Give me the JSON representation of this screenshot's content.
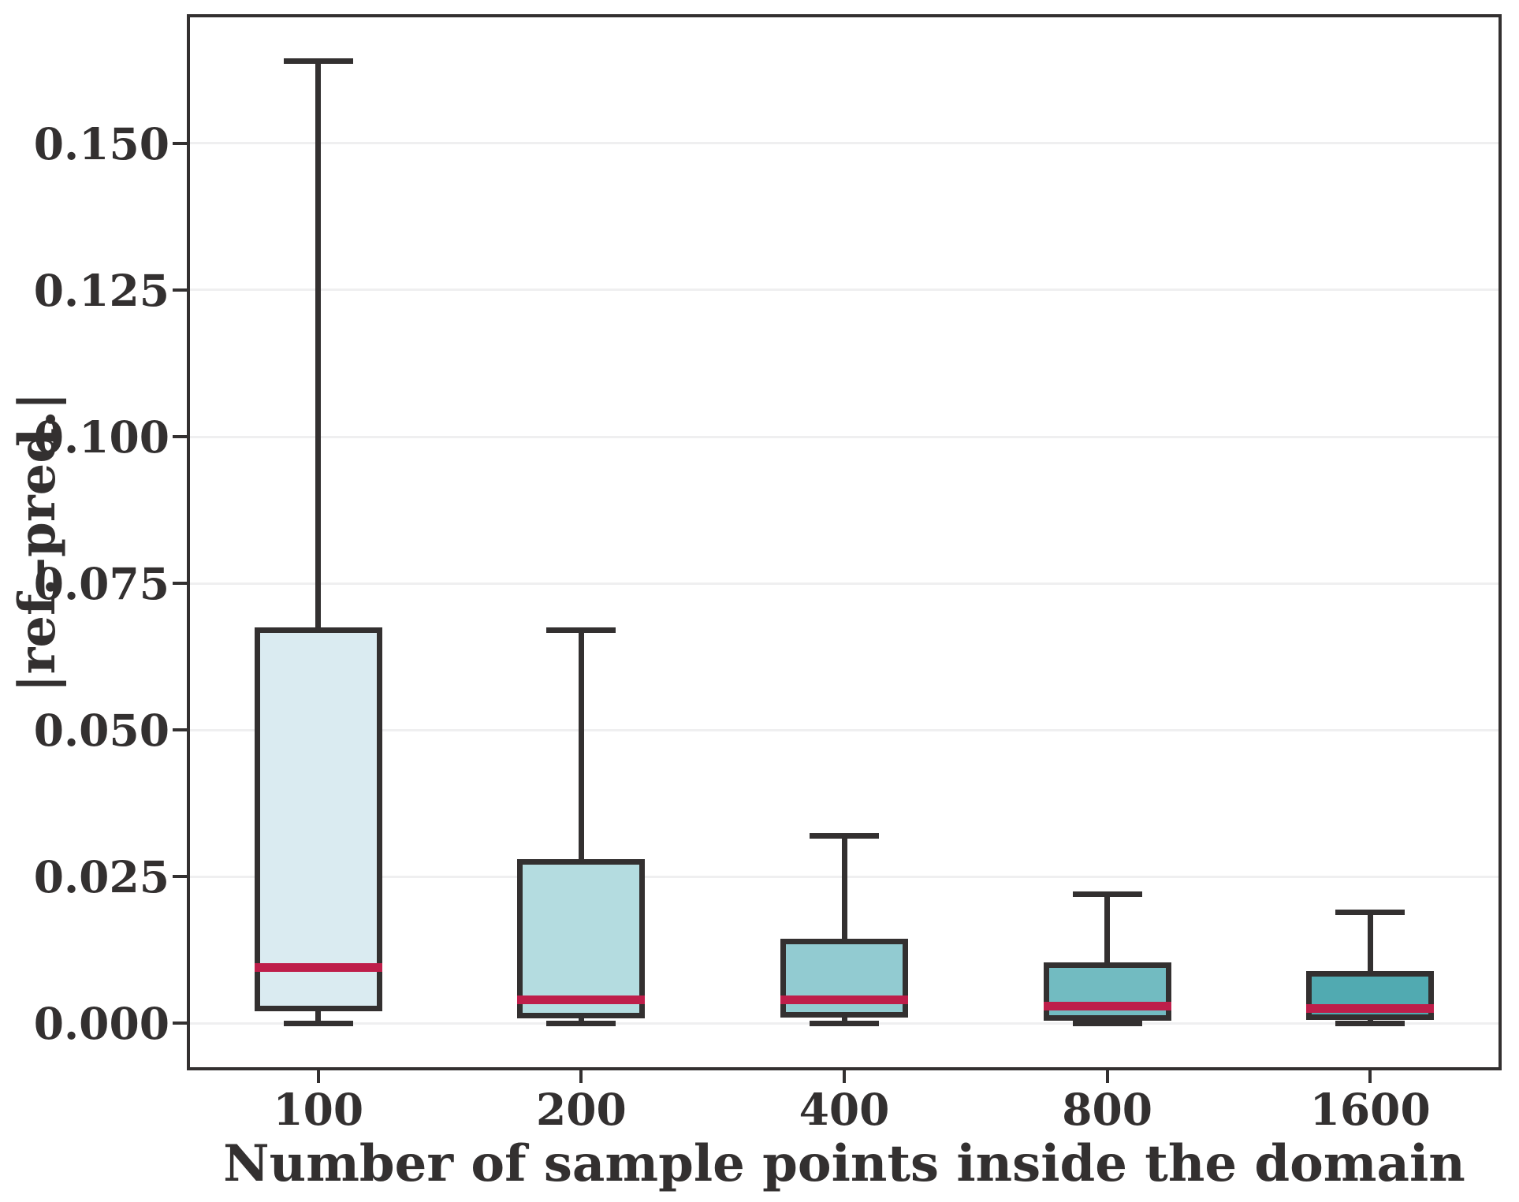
{
  "chart_data": {
    "type": "boxplot",
    "title": "",
    "xlabel": "Number of sample points inside the domain",
    "ylabel": "|ref.-pred.|",
    "categories": [
      "100",
      "200",
      "400",
      "800",
      "1600"
    ],
    "y_tick_labels": [
      "0.000",
      "0.025",
      "0.050",
      "0.075",
      "0.100",
      "0.125",
      "0.150"
    ],
    "y_tick_values": [
      0.0,
      0.025,
      0.05,
      0.075,
      0.1,
      0.125,
      0.15
    ],
    "ylim": [
      -0.008,
      0.172
    ],
    "grid": "horizontal",
    "legend_position": "none",
    "boxes": [
      {
        "category": "100",
        "whisker_low": 0.0,
        "q1": 0.0025,
        "median": 0.0095,
        "q3": 0.067,
        "whisker_high": 0.164,
        "fill": "#daebf1"
      },
      {
        "category": "200",
        "whisker_low": 0.0,
        "q1": 0.0013,
        "median": 0.004,
        "q3": 0.0275,
        "whisker_high": 0.067,
        "fill": "#b4dce0"
      },
      {
        "category": "400",
        "whisker_low": 0.0,
        "q1": 0.0015,
        "median": 0.004,
        "q3": 0.014,
        "whisker_high": 0.032,
        "fill": "#92cbd1"
      },
      {
        "category": "800",
        "whisker_low": 0.0,
        "q1": 0.001,
        "median": 0.003,
        "q3": 0.01,
        "whisker_high": 0.022,
        "fill": "#72bbc1"
      },
      {
        "category": "1600",
        "whisker_low": 0.0,
        "q1": 0.001,
        "median": 0.0025,
        "q3": 0.0085,
        "whisker_high": 0.019,
        "fill": "#51aab1"
      }
    ],
    "colors": {
      "median": "#be1e4a",
      "box_edge": "#333030",
      "whisker": "#333030",
      "gridline": "#efeff0",
      "background": "#ffffff",
      "tick_text": "#333030"
    }
  }
}
